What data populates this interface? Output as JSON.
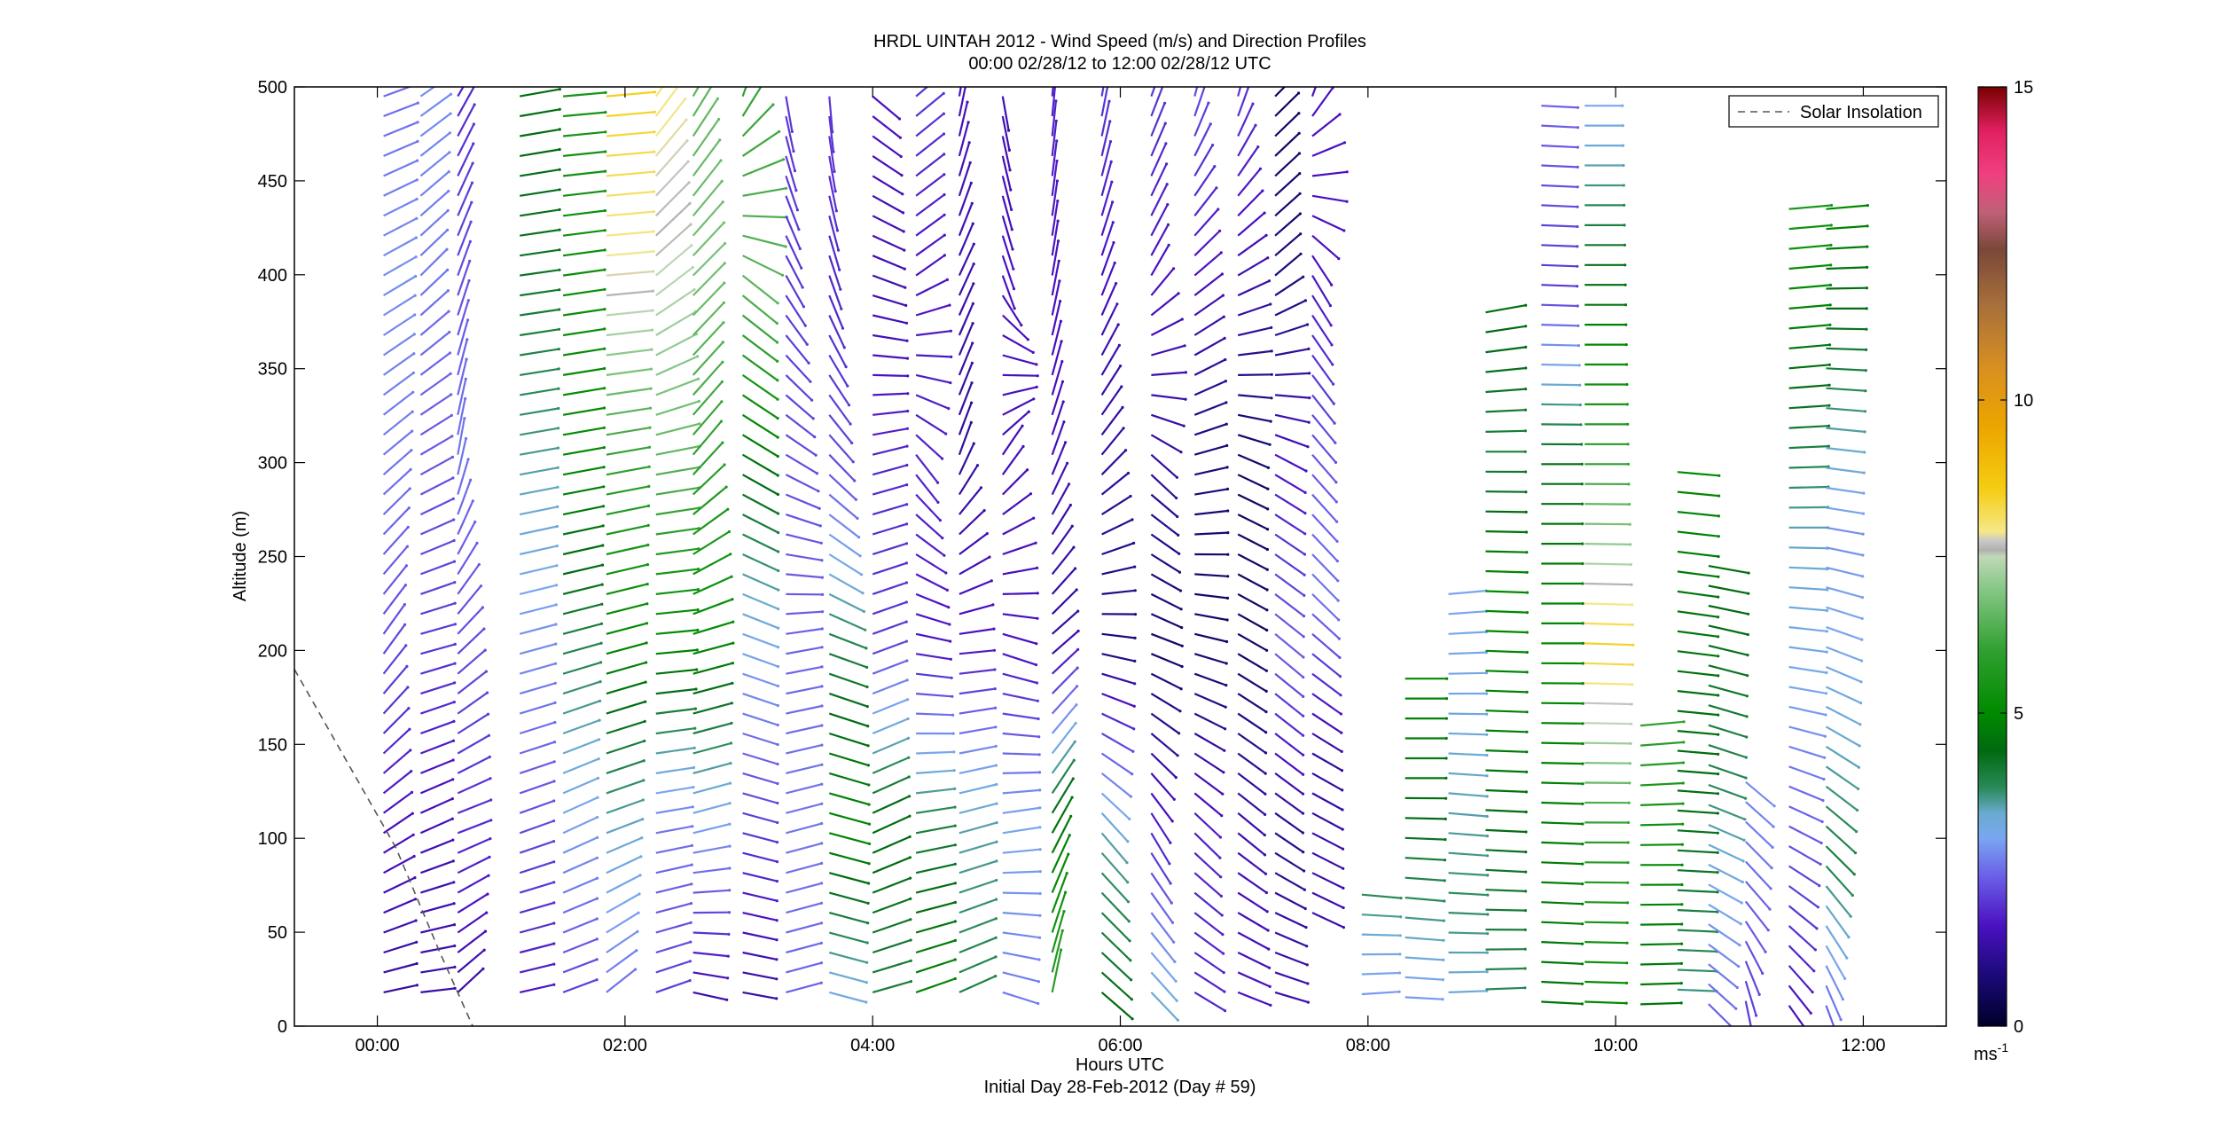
{
  "chart_data": {
    "type": "wind-barb-profile",
    "title": "HRDL UINTAH 2012 - Wind Speed (m/s) and Direction Profiles",
    "subtitle": "00:00 02/28/12 to 12:00 02/28/12  UTC",
    "xlabel": "Hours UTC",
    "xlabel2": "Initial Day 28-Feb-2012 (Day # 59)",
    "ylabel": "Altitude (m)",
    "xlim": [
      -0.67,
      12.67
    ],
    "ylim": [
      0,
      500
    ],
    "x_ticks": [
      {
        "value": 0,
        "label": "00:00"
      },
      {
        "value": 2,
        "label": "02:00"
      },
      {
        "value": 4,
        "label": "04:00"
      },
      {
        "value": 6,
        "label": "06:00"
      },
      {
        "value": 8,
        "label": "08:00"
      },
      {
        "value": 10,
        "label": "10:00"
      },
      {
        "value": 12,
        "label": "12:00"
      }
    ],
    "y_ticks": [
      {
        "value": 0,
        "label": "0"
      },
      {
        "value": 50,
        "label": "50"
      },
      {
        "value": 100,
        "label": "100"
      },
      {
        "value": 150,
        "label": "150"
      },
      {
        "value": 200,
        "label": "200"
      },
      {
        "value": 250,
        "label": "250"
      },
      {
        "value": 300,
        "label": "300"
      },
      {
        "value": 350,
        "label": "350"
      },
      {
        "value": 400,
        "label": "400"
      },
      {
        "value": 450,
        "label": "450"
      },
      {
        "value": 500,
        "label": "500"
      }
    ],
    "legend": {
      "label": "Solar Insolation",
      "placement": "top-right",
      "style": "dashed"
    },
    "solar_insolation": {
      "x": [
        -0.67,
        0.15,
        0.5,
        0.77
      ],
      "y": [
        190,
        95,
        40,
        0
      ]
    },
    "colorbar": {
      "label": "ms",
      "label_sup": "-1",
      "range": [
        0,
        15
      ],
      "ticks": [
        {
          "value": 0,
          "label": "0"
        },
        {
          "value": 5,
          "label": "5"
        },
        {
          "value": 10,
          "label": "10"
        },
        {
          "value": 15,
          "label": "15"
        }
      ],
      "stops": [
        {
          "v": 0,
          "c": "#000028"
        },
        {
          "v": 0.8,
          "c": "#1a0a78"
        },
        {
          "v": 1.6,
          "c": "#4a10c0"
        },
        {
          "v": 2.4,
          "c": "#6b60e8"
        },
        {
          "v": 3.0,
          "c": "#7aa6f0"
        },
        {
          "v": 3.4,
          "c": "#6aaad0"
        },
        {
          "v": 3.8,
          "c": "#2a8a5a"
        },
        {
          "v": 4.4,
          "c": "#006a10"
        },
        {
          "v": 5.0,
          "c": "#008a00"
        },
        {
          "v": 6.0,
          "c": "#30a030"
        },
        {
          "v": 7.0,
          "c": "#88c888"
        },
        {
          "v": 7.5,
          "c": "#c0d8b8"
        },
        {
          "v": 7.6,
          "c": "#b0b0b0"
        },
        {
          "v": 7.75,
          "c": "#c8c8c8"
        },
        {
          "v": 7.9,
          "c": "#f5e888"
        },
        {
          "v": 8.6,
          "c": "#f5cc10"
        },
        {
          "v": 9.6,
          "c": "#eca400"
        },
        {
          "v": 10.5,
          "c": "#d89020"
        },
        {
          "v": 11.5,
          "c": "#a8703a"
        },
        {
          "v": 12.4,
          "c": "#7a4838"
        },
        {
          "v": 13.0,
          "c": "#c06078"
        },
        {
          "v": 13.6,
          "c": "#f04080"
        },
        {
          "v": 14.3,
          "c": "#e02060"
        },
        {
          "v": 15,
          "c": "#780000"
        }
      ]
    },
    "barb_profiles": [
      {
        "t": 0.05,
        "top": 495,
        "bot": 10,
        "spd": [
          2.5,
          2.8,
          2.6,
          2.2,
          1.6,
          1.2
        ],
        "dir": [
          -20,
          -30,
          -40,
          -55,
          -35,
          -10
        ]
      },
      {
        "t": 0.35,
        "top": 495,
        "bot": 10,
        "spd": [
          2.8,
          2.6,
          2.3,
          2.0,
          1.5,
          1.3
        ],
        "dir": [
          -35,
          -45,
          -30,
          -15,
          -25,
          -5
        ]
      },
      {
        "t": 0.65,
        "top": 495,
        "bot": 10,
        "spd": [
          1.8,
          2.2,
          2.6,
          2.2,
          1.9,
          1.3
        ],
        "dir": [
          -60,
          -70,
          -80,
          -45,
          -20,
          -45
        ]
      },
      {
        "t": 1.15,
        "top": 495,
        "bot": 10,
        "spd": [
          4.5,
          4.2,
          3.6,
          2.8,
          2.2,
          1.6
        ],
        "dir": [
          -10,
          -8,
          -10,
          -15,
          -20,
          -12
        ]
      },
      {
        "t": 1.5,
        "top": 495,
        "bot": 10,
        "spd": [
          5.5,
          5.2,
          5.0,
          4.0,
          3.0,
          2.0
        ],
        "dir": [
          -5,
          -8,
          -10,
          -15,
          -25,
          -20
        ]
      },
      {
        "t": 1.85,
        "top": 495,
        "bot": 10,
        "spd": [
          8.5,
          7.8,
          6.0,
          5.0,
          3.5,
          2.5
        ],
        "dir": [
          -5,
          -5,
          -10,
          -15,
          -20,
          -40
        ]
      },
      {
        "t": 2.25,
        "top": 495,
        "bot": 10,
        "spd": [
          8.0,
          7.5,
          6.5,
          5.0,
          2.6,
          2.0
        ],
        "dir": [
          -55,
          -40,
          -10,
          -5,
          -10,
          -20
        ]
      },
      {
        "t": 2.55,
        "top": 495,
        "bot": 10,
        "spd": [
          6.5,
          6.8,
          6.0,
          5.0,
          3.0,
          1.2
        ],
        "dir": [
          -60,
          -45,
          -50,
          -15,
          -15,
          15
        ]
      },
      {
        "t": 2.95,
        "top": 495,
        "bot": 10,
        "spd": [
          6.0,
          6.5,
          4.5,
          3.0,
          2.0,
          1.2
        ],
        "dir": [
          -70,
          40,
          30,
          20,
          15,
          10
        ]
      },
      {
        "t": 3.3,
        "top": 495,
        "bot": 10,
        "spd": [
          2.0,
          2.0,
          2.2,
          2.4,
          2.6,
          2.4
        ],
        "dir": [
          80,
          60,
          30,
          -10,
          -15,
          -15
        ]
      },
      {
        "t": 3.65,
        "top": 495,
        "bot": 10,
        "spd": [
          2.0,
          1.8,
          2.2,
          4.0,
          5.0,
          3.0
        ],
        "dir": [
          85,
          70,
          45,
          20,
          15,
          15
        ]
      },
      {
        "t": 4.0,
        "top": 495,
        "bot": 10,
        "spd": [
          1.6,
          1.4,
          1.8,
          2.0,
          4.5,
          4.0
        ],
        "dir": [
          40,
          20,
          -15,
          -20,
          -25,
          -15
        ]
      },
      {
        "t": 4.35,
        "top": 495,
        "bot": 10,
        "spd": [
          2.0,
          1.6,
          1.8,
          1.6,
          4.0,
          5.0
        ],
        "dir": [
          -40,
          -35,
          55,
          10,
          -10,
          -20
        ]
      },
      {
        "t": 4.7,
        "top": 495,
        "bot": 10,
        "spd": [
          1.6,
          1.4,
          1.2,
          1.6,
          3.5,
          4.0
        ],
        "dir": [
          -80,
          -65,
          -70,
          -5,
          -15,
          -25
        ]
      },
      {
        "t": 5.05,
        "top": 495,
        "bot": 10,
        "spd": [
          1.4,
          1.6,
          1.5,
          1.6,
          3.0,
          2.6
        ],
        "dir": [
          80,
          70,
          -60,
          20,
          -10,
          20
        ]
      },
      {
        "t": 5.45,
        "top": 495,
        "bot": 10,
        "spd": [
          1.8,
          1.6,
          1.5,
          1.2,
          4.5,
          6.0
        ],
        "dir": [
          -85,
          -80,
          -70,
          -40,
          -60,
          -80
        ]
      },
      {
        "t": 5.85,
        "top": 495,
        "bot": 10,
        "spd": [
          2.0,
          1.6,
          1.2,
          0.8,
          3.5,
          4.5
        ],
        "dir": [
          -80,
          -70,
          -50,
          10,
          50,
          40
        ]
      },
      {
        "t": 6.25,
        "top": 495,
        "bot": 10,
        "spd": [
          2.0,
          1.6,
          1.2,
          0.6,
          1.8,
          3.5
        ],
        "dir": [
          -70,
          -60,
          45,
          20,
          60,
          45
        ]
      },
      {
        "t": 6.6,
        "top": 495,
        "bot": 10,
        "spd": [
          2.2,
          1.6,
          0.8,
          0.6,
          1.8,
          1.8
        ],
        "dir": [
          -75,
          -40,
          -15,
          15,
          45,
          30
        ]
      },
      {
        "t": 6.95,
        "top": 495,
        "bot": 10,
        "spd": [
          2.0,
          1.4,
          0.6,
          0.6,
          1.4,
          1.6
        ],
        "dir": [
          -75,
          -30,
          25,
          30,
          40,
          20
        ]
      },
      {
        "t": 7.25,
        "top": 495,
        "bot": 10,
        "spd": [
          0.5,
          0.8,
          1.6,
          2.4,
          1.0,
          1.4
        ],
        "dir": [
          -45,
          -40,
          30,
          40,
          35,
          15
        ]
      },
      {
        "t": 7.55,
        "top": 495,
        "bot": 60,
        "spd": [
          1.6,
          1.6,
          2.2,
          2.6,
          1.2,
          1.4
        ],
        "dir": [
          -70,
          60,
          50,
          45,
          30,
          25
        ]
      },
      {
        "t": 7.95,
        "top": 70,
        "bot": 10,
        "spd": [
          3.8,
          3.2,
          2.8
        ],
        "dir": [
          5,
          0,
          -5
        ]
      },
      {
        "t": 8.3,
        "top": 185,
        "bot": 10,
        "spd": [
          5.0,
          4.6,
          3.8,
          2.8
        ],
        "dir": [
          0,
          0,
          5,
          3
        ]
      },
      {
        "t": 8.65,
        "top": 230,
        "bot": 10,
        "spd": [
          3.0,
          3.2,
          3.5,
          3.8,
          3.2
        ],
        "dir": [
          -5,
          0,
          5,
          3,
          -3
        ]
      },
      {
        "t": 8.95,
        "top": 380,
        "bot": 10,
        "spd": [
          4.5,
          4.0,
          5.0,
          4.8,
          4.2,
          3.8
        ],
        "dir": [
          -10,
          0,
          2,
          2,
          3,
          -3
        ]
      },
      {
        "t": 9.4,
        "top": 490,
        "bot": 10,
        "spd": [
          2.4,
          2.0,
          4.5,
          5.0,
          4.8,
          4.6
        ],
        "dir": [
          3,
          2,
          0,
          0,
          2,
          3
        ]
      },
      {
        "t": 9.75,
        "top": 490,
        "bot": 10,
        "spd": [
          3.0,
          4.5,
          6.0,
          8.5,
          6.0,
          5.0
        ],
        "dir": [
          0,
          0,
          0,
          2,
          0,
          2
        ]
      },
      {
        "t": 10.2,
        "top": 160,
        "bot": 10,
        "spd": [
          6.0,
          5.0,
          4.6
        ],
        "dir": [
          -5,
          0,
          -2
        ]
      },
      {
        "t": 10.5,
        "top": 295,
        "bot": 10,
        "spd": [
          5.0,
          4.6,
          4.5,
          4.2,
          3.6
        ],
        "dir": [
          5,
          8,
          5,
          3,
          2
        ]
      },
      {
        "t": 10.75,
        "top": 245,
        "bot": 10,
        "spd": [
          4.5,
          4.2,
          3.8,
          3.0,
          2.4
        ],
        "dir": [
          10,
          15,
          20,
          30,
          45
        ]
      },
      {
        "t": 11.05,
        "top": 130,
        "bot": 10,
        "spd": [
          2.8,
          2.4,
          2.0
        ],
        "dir": [
          40,
          50,
          80
        ]
      },
      {
        "t": 11.4,
        "top": 435,
        "bot": 10,
        "spd": [
          5.5,
          4.5,
          3.5,
          3.0,
          2.2,
          1.6
        ],
        "dir": [
          -5,
          -5,
          0,
          10,
          30,
          55
        ]
      },
      {
        "t": 11.7,
        "top": 435,
        "bot": 10,
        "spd": [
          5.0,
          4.0,
          2.8,
          3.2,
          4.0,
          2.4
        ],
        "dir": [
          -5,
          3,
          10,
          25,
          45,
          70
        ]
      }
    ]
  }
}
